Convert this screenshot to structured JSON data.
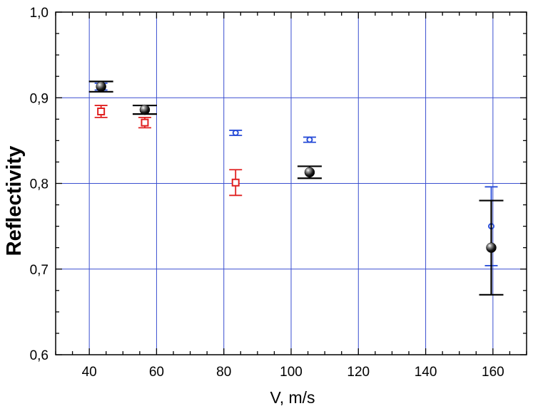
{
  "chart_data": {
    "type": "scatter",
    "title": "",
    "xlabel": "V, m/s",
    "ylabel": "Reflectivity",
    "xlim": [
      30,
      170
    ],
    "ylim": [
      0.6,
      1.0
    ],
    "x_ticks": [
      40,
      60,
      80,
      100,
      120,
      140,
      160
    ],
    "x_tick_labels": [
      "40",
      "60",
      "80",
      "100",
      "120",
      "140",
      "160"
    ],
    "y_ticks": [
      0.6,
      0.7,
      0.8,
      0.9,
      1.0
    ],
    "y_tick_labels": [
      "0,6",
      "0,7",
      "0,8",
      "0,9",
      "1,0"
    ],
    "grid": true,
    "colors": {
      "grid": "#3a4fd0",
      "blue": "#2b4fd8",
      "red": "#e02020",
      "black": "#000000"
    },
    "series": [
      {
        "marker": "open-circle",
        "color": "#2b4fd8",
        "points": [
          {
            "x": 43.5,
            "y": 0.913,
            "err": 0.004
          },
          {
            "x": 83.5,
            "y": 0.859,
            "err": 0.003
          },
          {
            "x": 105.5,
            "y": 0.851,
            "err": 0.003
          },
          {
            "x": 159.5,
            "y": 0.75,
            "err": 0.046
          }
        ]
      },
      {
        "marker": "open-square",
        "color": "#e02020",
        "points": [
          {
            "x": 43.5,
            "y": 0.884,
            "err": 0.007
          },
          {
            "x": 56.5,
            "y": 0.871,
            "err": 0.006
          },
          {
            "x": 83.5,
            "y": 0.801,
            "err": 0.015
          }
        ]
      },
      {
        "marker": "filled-sphere",
        "color": "#000000",
        "points": [
          {
            "x": 43.5,
            "y": 0.913,
            "err": 0.006
          },
          {
            "x": 56.5,
            "y": 0.886,
            "err": 0.005
          },
          {
            "x": 105.5,
            "y": 0.813,
            "err": 0.007
          },
          {
            "x": 159.5,
            "y": 0.725,
            "err": 0.055
          }
        ]
      }
    ]
  }
}
